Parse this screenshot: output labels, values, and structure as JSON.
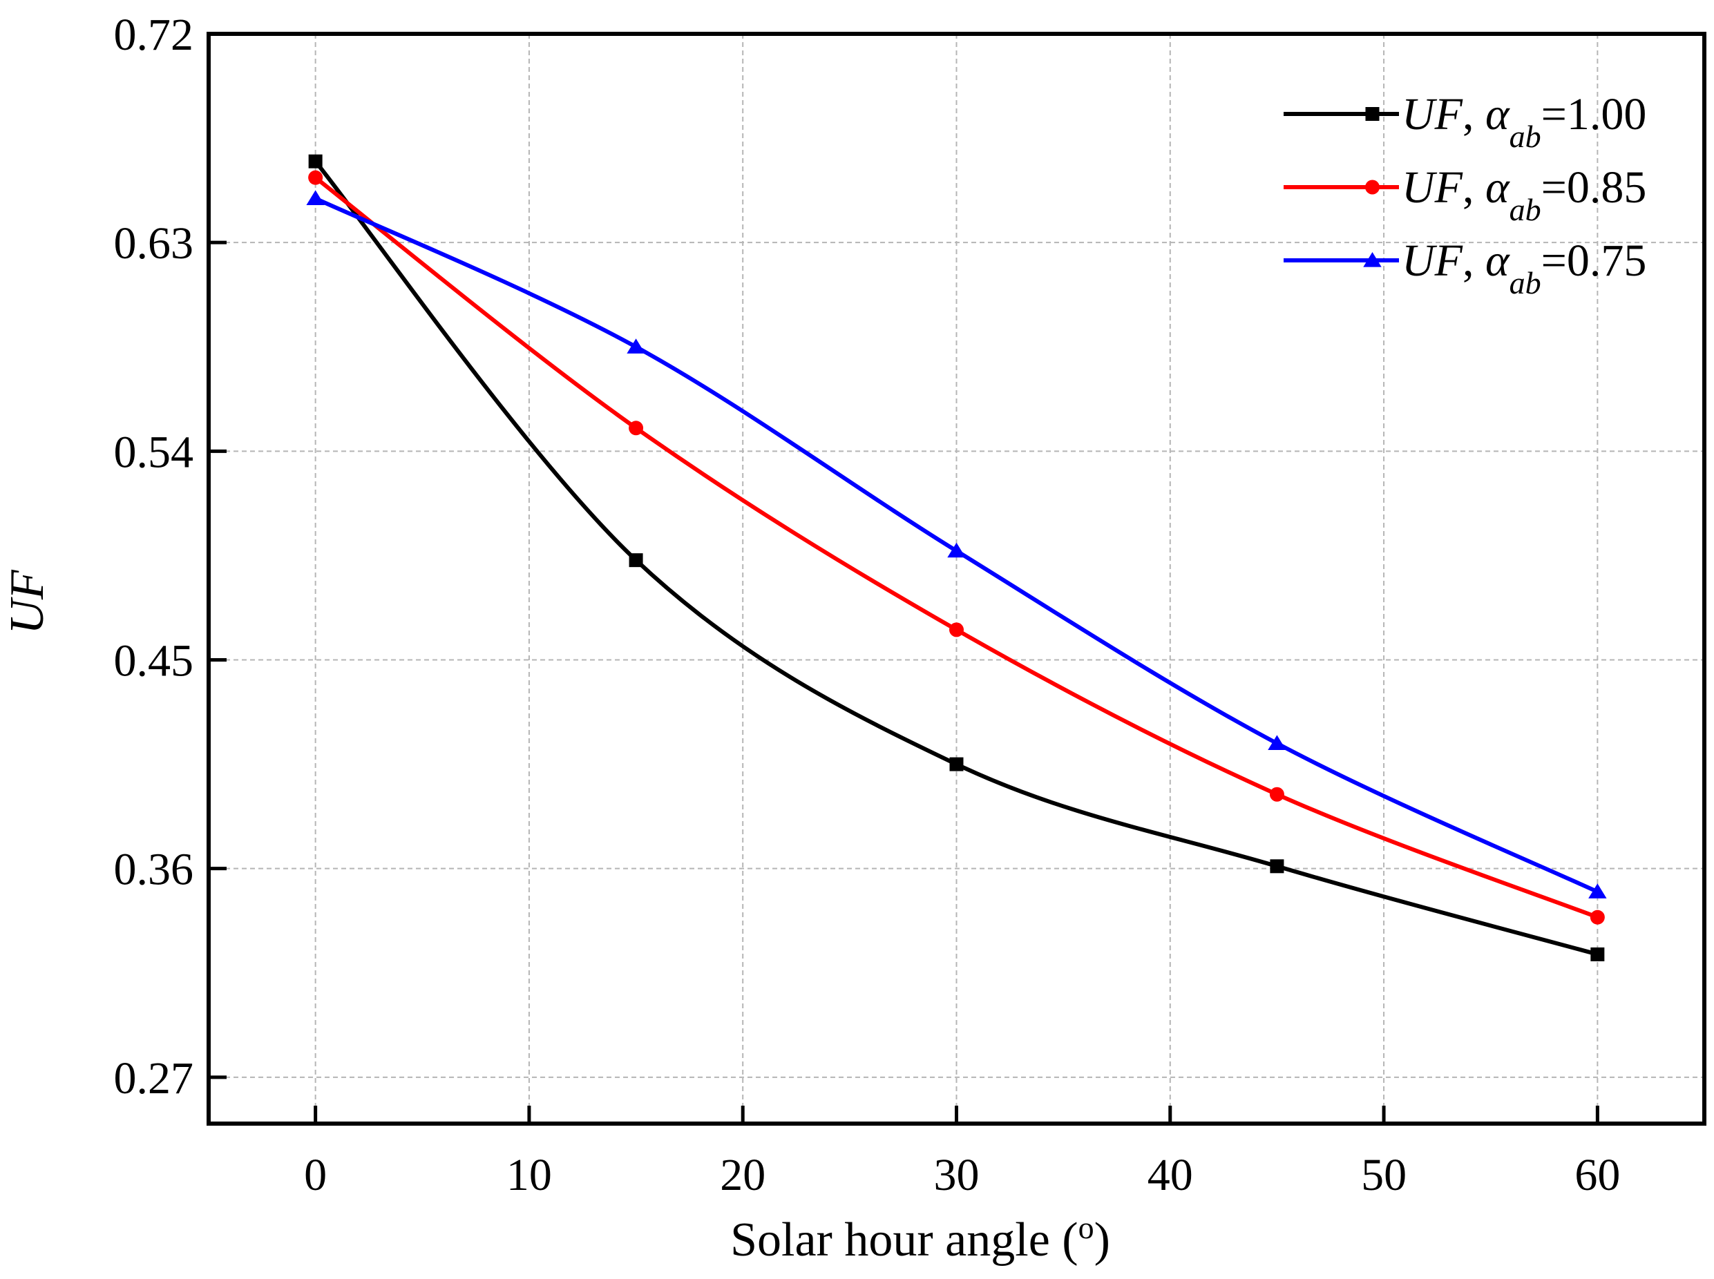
{
  "chart_data": {
    "type": "line",
    "title": "",
    "xlabel": "Solar hour angle (",
    "xlabel_superscript": "o",
    "xlabel_suffix": ")",
    "ylabel": "UF",
    "xlim": [
      -5,
      65
    ],
    "ylim": [
      0.25,
      0.72
    ],
    "xticks": [
      0,
      10,
      20,
      30,
      40,
      50,
      60
    ],
    "yticks": [
      0.27,
      0.36,
      0.45,
      0.54,
      0.63,
      0.72
    ],
    "ytick_labels": [
      "0.27",
      "0.36",
      "0.45",
      "0.54",
      "0.63",
      "0.72"
    ],
    "grid": true,
    "legend_position": "top-right",
    "x": [
      0,
      15,
      30,
      45,
      60
    ],
    "series": [
      {
        "name": "UF, αab=1.00",
        "label_var": "UF",
        "label_sym": "α",
        "label_sub": "ab",
        "label_val": "=1.00",
        "color": "#000000",
        "marker": "square",
        "values": [
          0.665,
          0.493,
          0.405,
          0.361,
          0.323
        ]
      },
      {
        "name": "UF, αab=0.85",
        "label_var": "UF",
        "label_sym": "α",
        "label_sub": "ab",
        "label_val": "=0.85",
        "color": "#ff0000",
        "marker": "circle",
        "values": [
          0.658,
          0.55,
          0.463,
          0.392,
          0.339
        ]
      },
      {
        "name": "UF, αab=0.75",
        "label_var": "UF",
        "label_sym": "α",
        "label_sub": "ab",
        "label_val": "=0.75",
        "color": "#0000ff",
        "marker": "triangle",
        "values": [
          0.649,
          0.585,
          0.497,
          0.414,
          0.35
        ]
      }
    ]
  }
}
